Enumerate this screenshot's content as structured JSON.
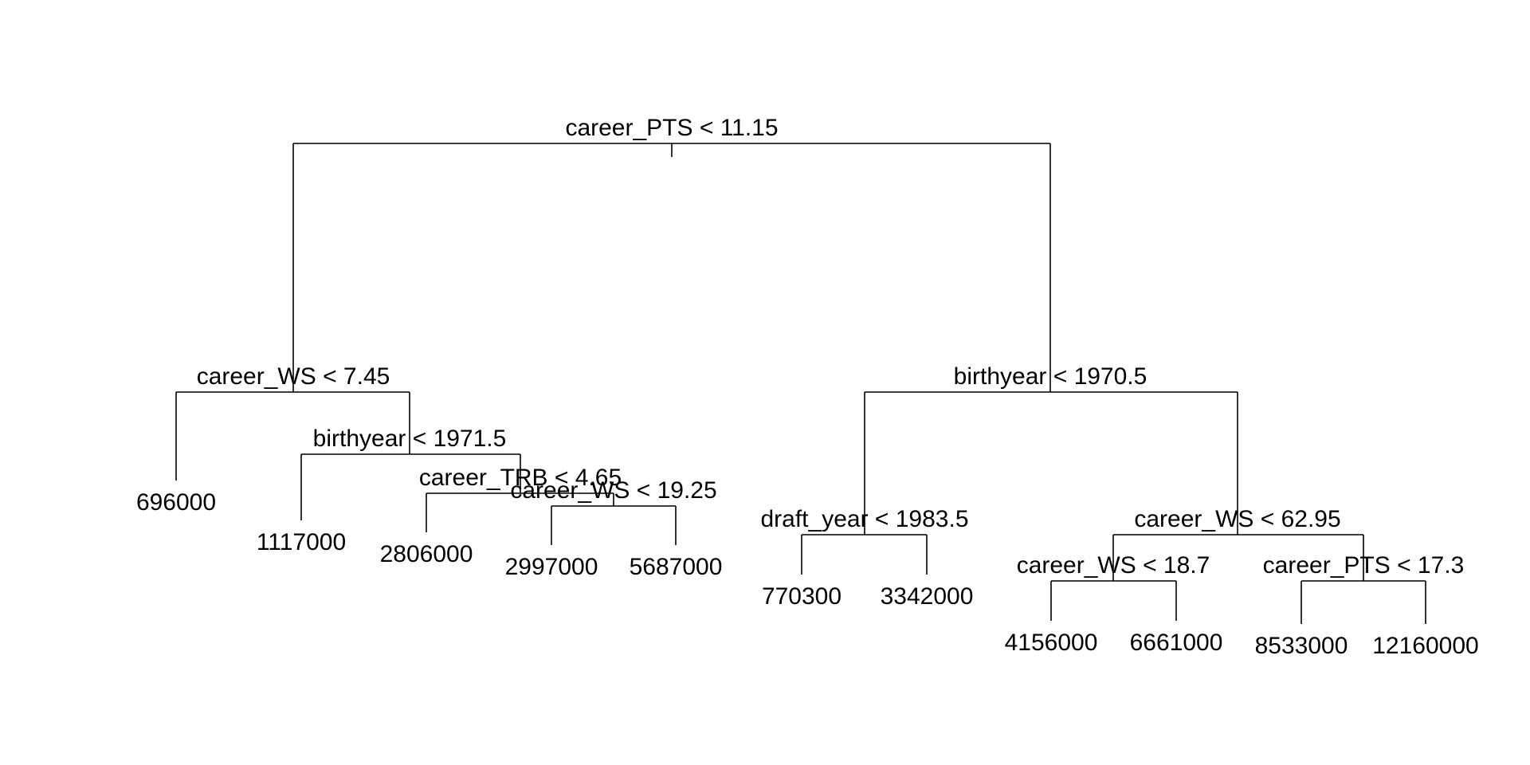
{
  "tree": {
    "id": "root",
    "label": "career_PTS < 11.15",
    "children": [
      {
        "id": "n2",
        "label": "career_WS < 7.45",
        "children": [
          {
            "id": "l1",
            "label": "696000"
          },
          {
            "id": "n5",
            "label": "birthyear < 1971.5",
            "children": [
              {
                "id": "l2",
                "label": "1117000"
              },
              {
                "id": "n11",
                "label": "career_TRB < 4.65",
                "children": [
                  {
                    "id": "l3",
                    "label": "2806000"
                  },
                  {
                    "id": "n23",
                    "label": "career_WS < 19.25",
                    "children": [
                      {
                        "id": "l4",
                        "label": "2997000"
                      },
                      {
                        "id": "l5",
                        "label": "5687000"
                      }
                    ]
                  }
                ]
              }
            ]
          }
        ]
      },
      {
        "id": "n3",
        "label": "birthyear < 1970.5",
        "children": [
          {
            "id": "n6",
            "label": "draft_year < 1983.5",
            "children": [
              {
                "id": "l6",
                "label": "770300"
              },
              {
                "id": "l7",
                "label": "3342000"
              }
            ]
          },
          {
            "id": "n7",
            "label": "career_WS < 62.95",
            "children": [
              {
                "id": "n14",
                "label": "career_WS < 18.7",
                "children": [
                  {
                    "id": "l8",
                    "label": "4156000"
                  },
                  {
                    "id": "l9",
                    "label": "6661000"
                  }
                ]
              },
              {
                "id": "n15",
                "label": "career_PTS < 17.3",
                "children": [
                  {
                    "id": "l10",
                    "label": "8533000"
                  },
                  {
                    "id": "l11",
                    "label": "12160000"
                  }
                ]
              }
            ]
          }
        ]
      }
    ]
  }
}
